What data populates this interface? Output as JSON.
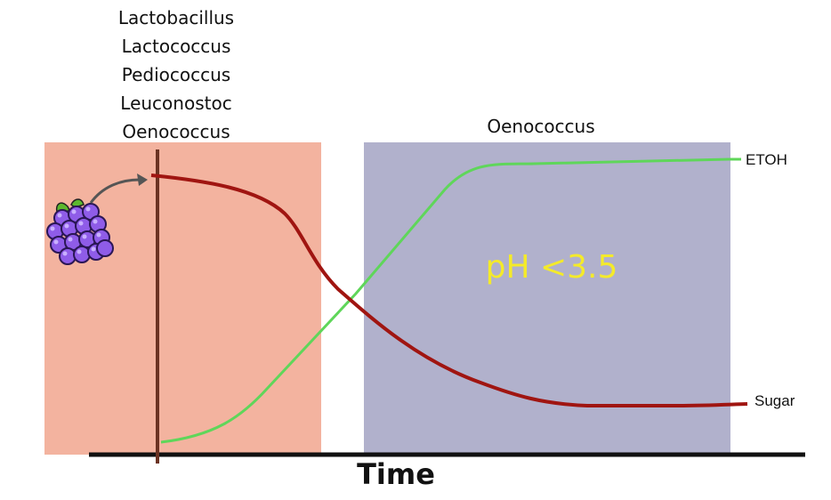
{
  "early_bacteria": [
    "Lactobacillus",
    "Lactococcus",
    "Pediococcus",
    "Leuconostoc",
    "Oenococcus"
  ],
  "late_bacteria": "Oenococcus",
  "ph_note": "pH <3.5",
  "curves": {
    "etoh": "ETOH",
    "sugar": "Sugar"
  },
  "x_axis_label": "Time",
  "icons": {
    "grapes": "grapes-icon",
    "arrow": "curved-arrow-icon"
  },
  "colors": {
    "early_phase": "#f3b39f",
    "late_phase": "#b1b1cc",
    "sugar_curve": "#a01511",
    "etoh_curve": "#5fd65a",
    "ph_text": "#f4ea2a"
  }
}
